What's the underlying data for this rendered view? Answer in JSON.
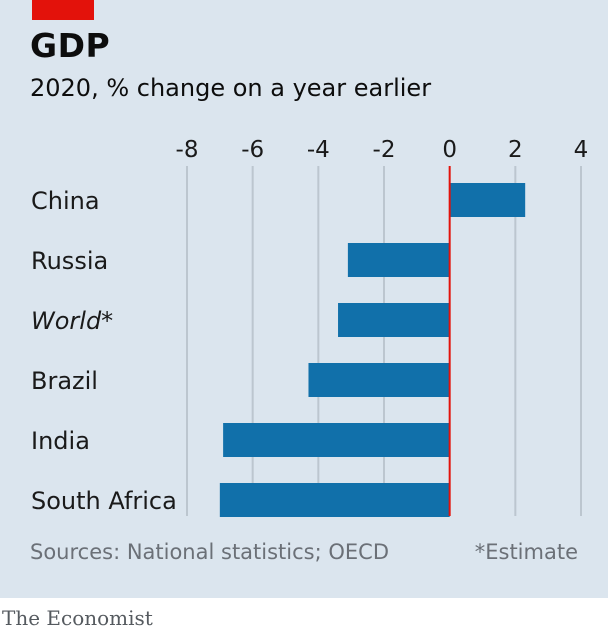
{
  "header": {
    "title": "GDP",
    "subtitle": "2020, % change on a year earlier"
  },
  "footer": {
    "source": "Sources: National statistics; OECD",
    "footnote": "*Estimate",
    "brand": "The Economist"
  },
  "colors": {
    "bar": "#1170aa",
    "zero_line": "#e3120b",
    "accent": "#e3120b",
    "background": "#dbe5ee",
    "grid": "#bcc6cf"
  },
  "chart_data": {
    "type": "bar",
    "orientation": "horizontal",
    "categories": [
      "China",
      "Russia",
      "World*",
      "Brazil",
      "India",
      "South Africa"
    ],
    "values": [
      2.3,
      -3.1,
      -3.4,
      -4.3,
      -6.9,
      -7.0
    ],
    "xlim": [
      -8,
      4
    ],
    "xticks": [
      -8,
      -6,
      -4,
      -2,
      0,
      2,
      4
    ],
    "xtick_labels": [
      "-8",
      "-6",
      "-4",
      "-2",
      "0",
      "2",
      "4"
    ],
    "axis_position": "top",
    "grid": true
  }
}
